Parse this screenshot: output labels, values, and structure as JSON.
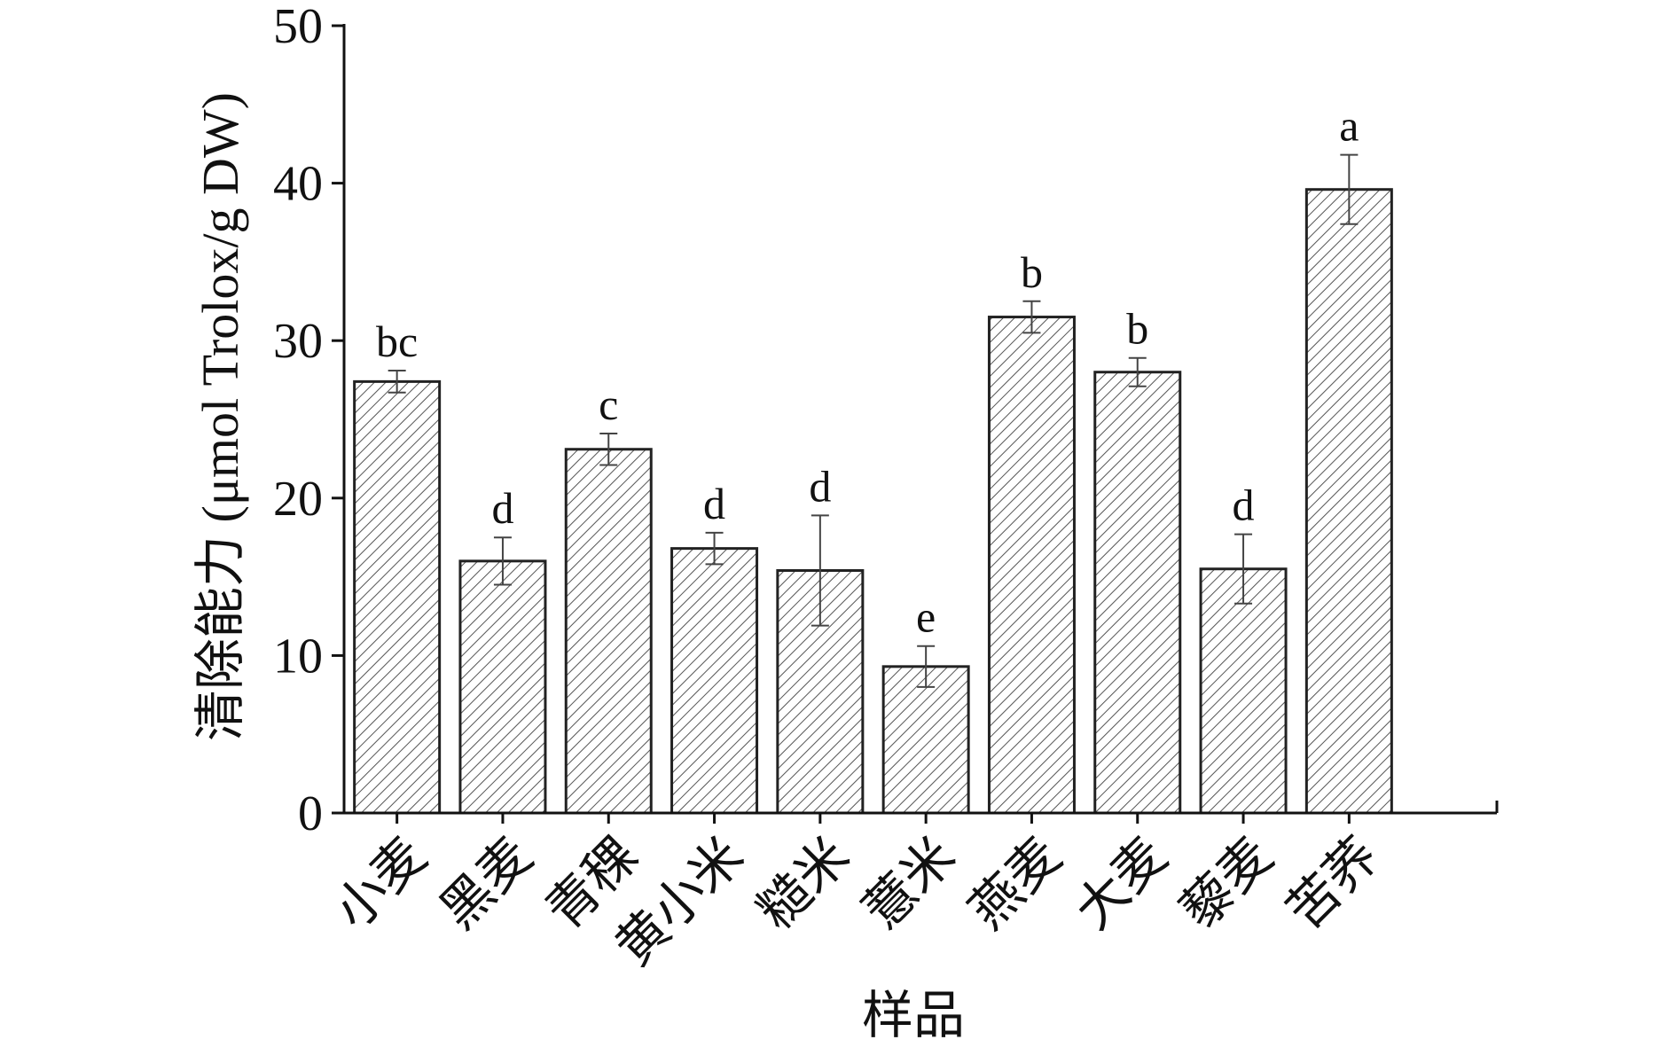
{
  "chart_data": {
    "type": "bar",
    "xlabel": "样品",
    "ylabel": "清除能力 (μmol Trolox/g DW)",
    "ylim": [
      0,
      50
    ],
    "yticks": [
      0,
      10,
      20,
      30,
      40,
      50
    ],
    "grid": false,
    "legend": "none",
    "categories": [
      "小麦",
      "黑麦",
      "青稞",
      "黄小米",
      "糙米",
      "薏米",
      "燕麦",
      "大麦",
      "藜麦",
      "苦荞"
    ],
    "category_lines": [
      [
        "小麦"
      ],
      [
        "黑麦"
      ],
      [
        "青稞"
      ],
      [
        "黄小米"
      ],
      [
        "糙米"
      ],
      [
        "薏米"
      ],
      [
        "燕麦"
      ],
      [
        "大麦"
      ],
      [
        "藜麦"
      ],
      [
        "苦荞"
      ]
    ],
    "values": [
      27.4,
      16.0,
      23.1,
      16.8,
      15.4,
      9.3,
      31.5,
      28.0,
      15.5,
      39.6
    ],
    "errors": [
      0.7,
      1.5,
      1.0,
      1.0,
      3.5,
      1.3,
      1.0,
      0.9,
      2.2,
      2.2
    ],
    "significance": [
      "bc",
      "d",
      "c",
      "d",
      "d",
      "e",
      "b",
      "b",
      "d",
      "a"
    ],
    "colors": {
      "bar_fill": "#ffffff",
      "hatch": "#555555",
      "bar_edge": "#222222",
      "axis": "#111111",
      "error_bar": "#444444"
    }
  }
}
